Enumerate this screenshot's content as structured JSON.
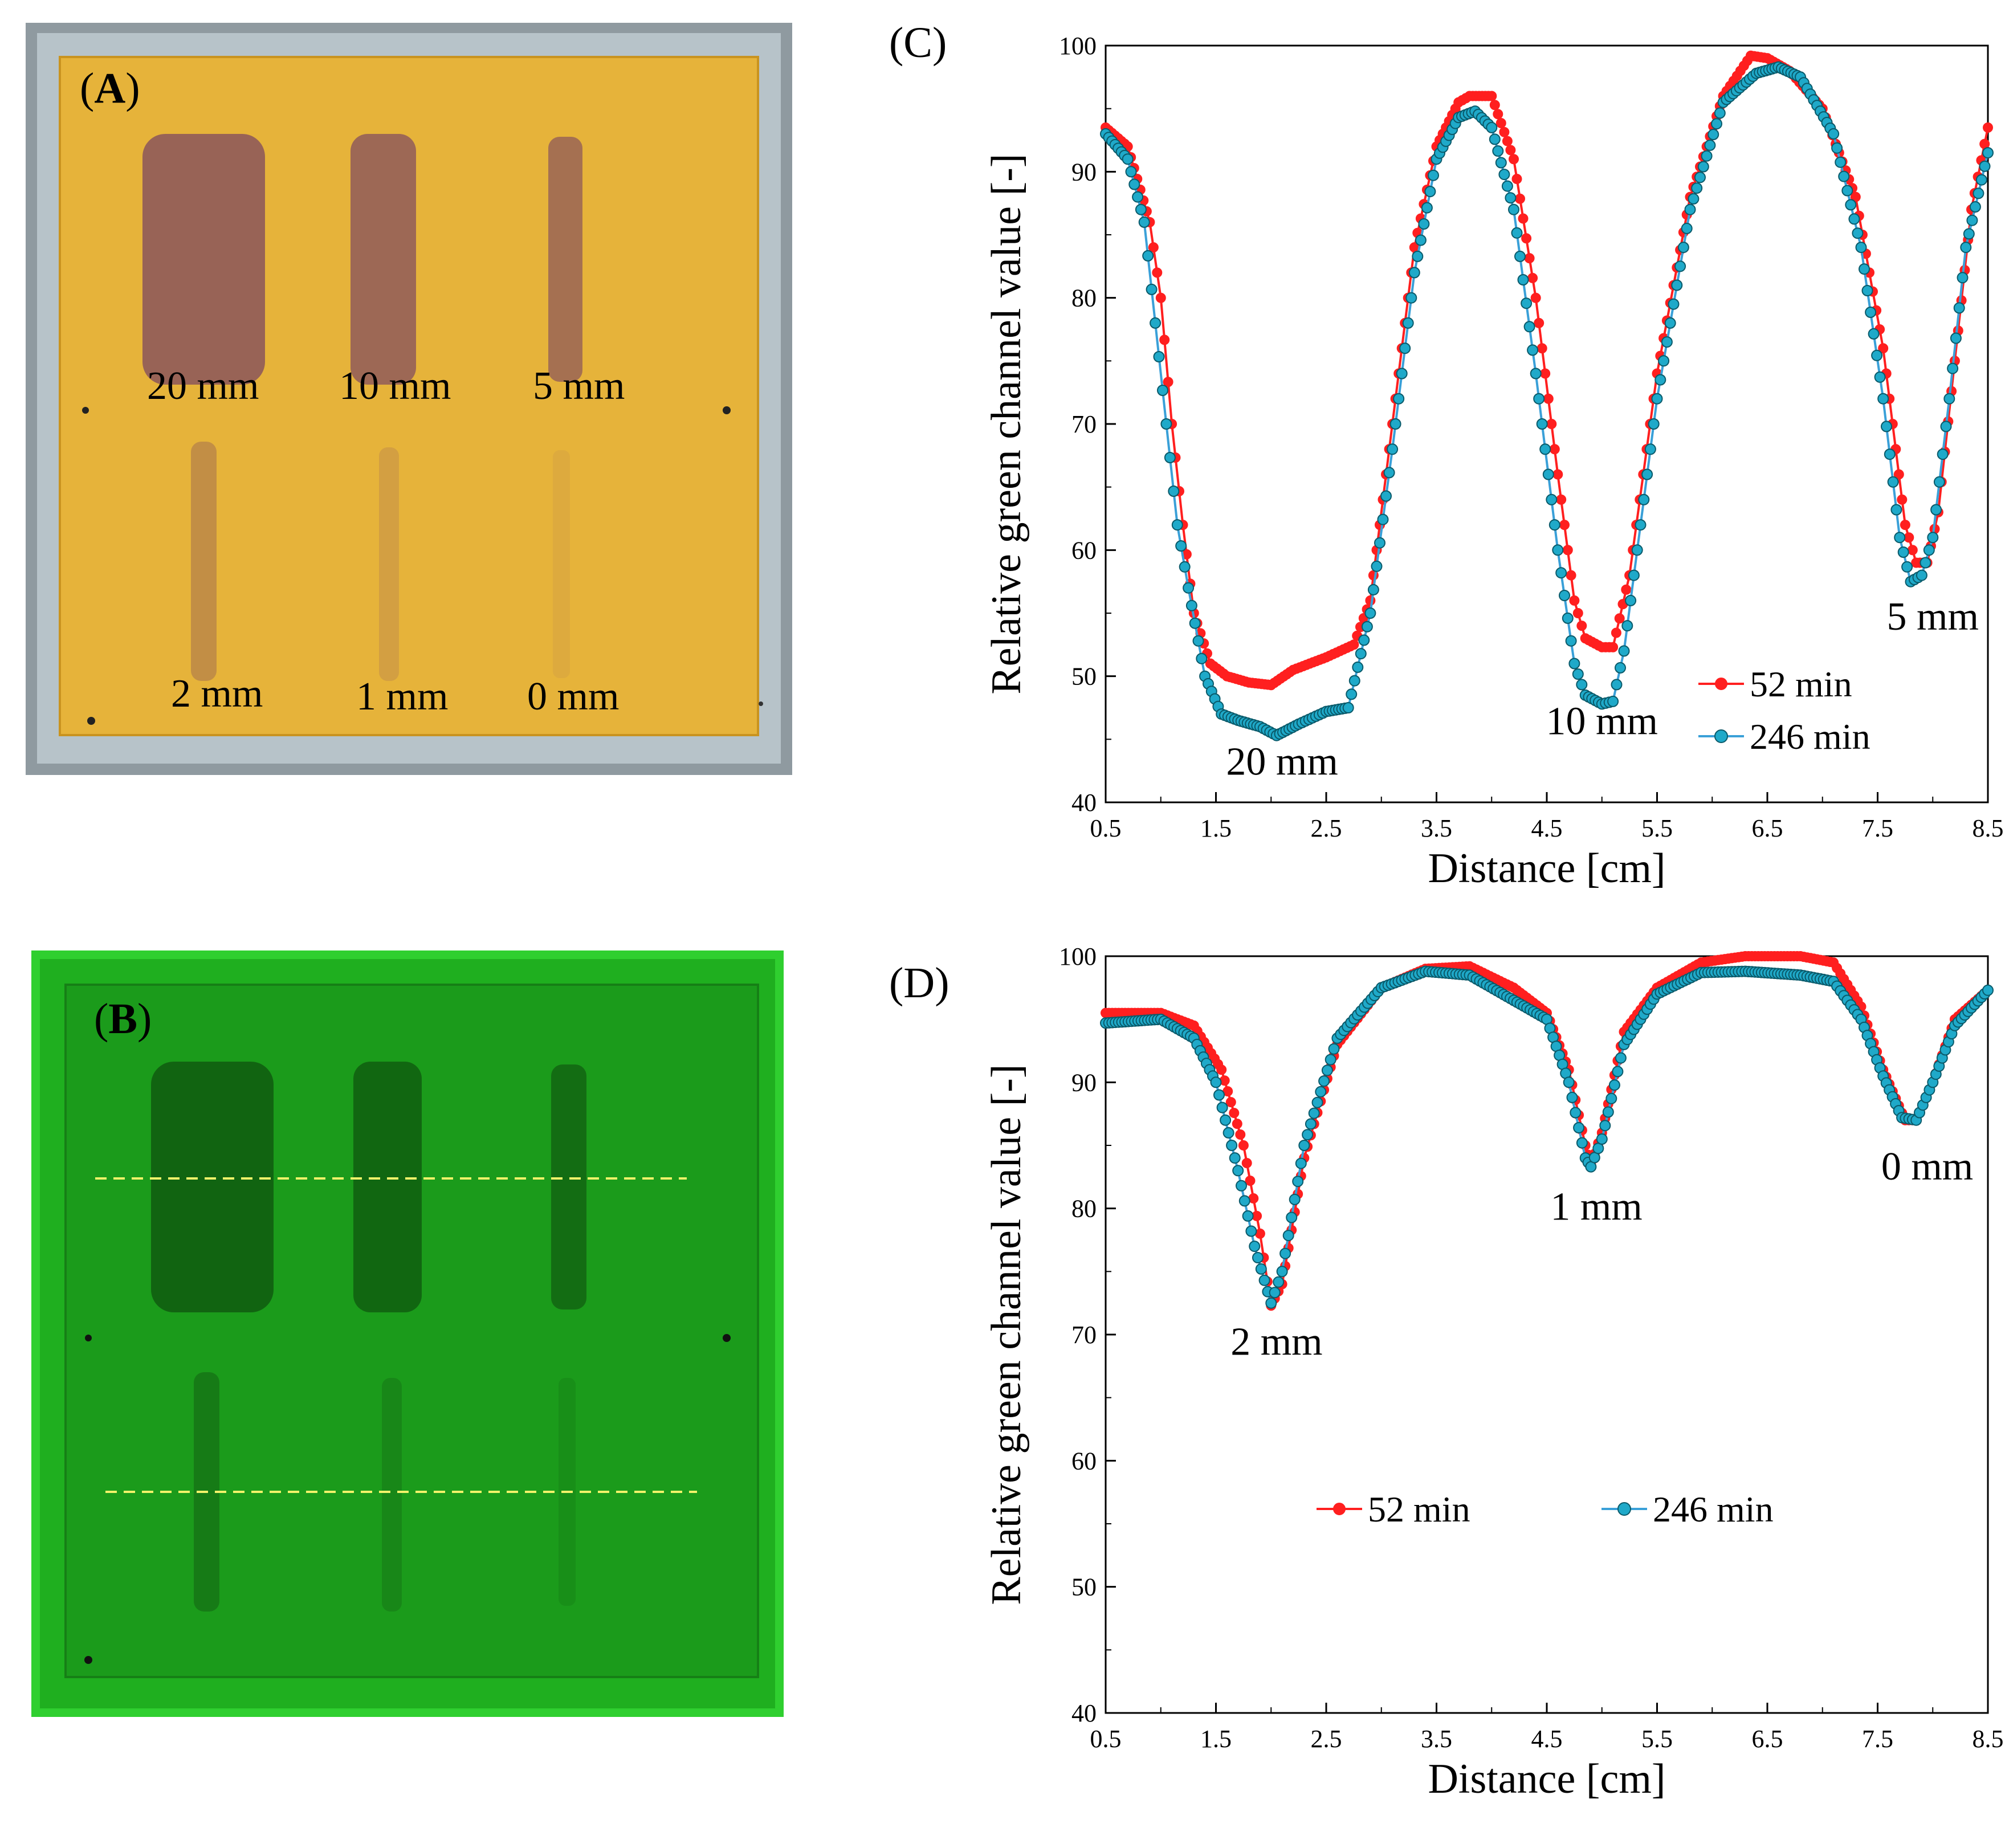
{
  "panels": {
    "A": {
      "label_open": "(",
      "label_letter": "A",
      "label_close": ")",
      "grid_labels": [
        "20 mm",
        "10 mm",
        "5 mm",
        "2 mm",
        "1 mm",
        "0 mm"
      ]
    },
    "B": {
      "label_open": "(",
      "label_letter": "B",
      "label_close": ")"
    }
  },
  "colors": {
    "series_52": "#ff1f1f",
    "series_246": "#1fa9c9",
    "series_246_line": "#3aa0d8",
    "photoA_bg": "#e6b23a",
    "photoB_bg": "#1a9a1a",
    "dashed_line": "#f2f26a"
  },
  "chart_data": [
    {
      "id": "C",
      "panel_label": "(C)",
      "type": "line",
      "xlabel": "Distance [cm]",
      "ylabel": "Relative  green  channel  value  [-]",
      "xlim": [
        0.5,
        8.5
      ],
      "ylim": [
        40,
        100
      ],
      "xticks": [
        "0.5",
        "1.5",
        "2.5",
        "3.5",
        "4.5",
        "5.5",
        "6.5",
        "7.5",
        "8.5"
      ],
      "yticks": [
        "40",
        "50",
        "60",
        "70",
        "80",
        "90",
        "100"
      ],
      "legend": [
        "52 min",
        "246 min"
      ],
      "annotations": [
        {
          "text": "20 mm",
          "x": 2.1,
          "y": 42.2
        },
        {
          "text": "10 mm",
          "x": 5.0,
          "y": 45.4
        },
        {
          "text": "5 mm",
          "x": 8.0,
          "y": 53.7
        }
      ],
      "series": [
        {
          "name": "52 min",
          "points": [
            [
              0.5,
              93.5
            ],
            [
              0.7,
              92
            ],
            [
              0.9,
              86
            ],
            [
              1.0,
              80
            ],
            [
              1.1,
              70
            ],
            [
              1.2,
              62
            ],
            [
              1.3,
              55
            ],
            [
              1.45,
              51
            ],
            [
              1.6,
              50
            ],
            [
              1.8,
              49.5
            ],
            [
              2.0,
              49.3
            ],
            [
              2.2,
              50.5
            ],
            [
              2.5,
              51.5
            ],
            [
              2.75,
              52.5
            ],
            [
              2.9,
              56
            ],
            [
              3.1,
              70
            ],
            [
              3.3,
              84
            ],
            [
              3.5,
              92
            ],
            [
              3.7,
              95.5
            ],
            [
              3.8,
              96
            ],
            [
              4.0,
              96
            ],
            [
              4.2,
              91
            ],
            [
              4.4,
              80
            ],
            [
              4.6,
              66
            ],
            [
              4.75,
              56
            ],
            [
              4.85,
              53
            ],
            [
              5.0,
              52.3
            ],
            [
              5.1,
              52.3
            ],
            [
              5.25,
              58
            ],
            [
              5.5,
              74
            ],
            [
              5.8,
              88
            ],
            [
              6.1,
              96
            ],
            [
              6.35,
              99.2
            ],
            [
              6.5,
              99
            ],
            [
              6.7,
              98
            ],
            [
              7.0,
              95
            ],
            [
              7.3,
              88
            ],
            [
              7.55,
              76
            ],
            [
              7.75,
              62
            ],
            [
              7.85,
              59
            ],
            [
              7.95,
              59
            ],
            [
              8.05,
              63
            ],
            [
              8.2,
              75
            ],
            [
              8.35,
              87
            ],
            [
              8.5,
              93.5
            ]
          ]
        },
        {
          "name": "246 min",
          "points": [
            [
              0.5,
              93
            ],
            [
              0.7,
              91
            ],
            [
              0.85,
              86
            ],
            [
              0.95,
              78
            ],
            [
              1.05,
              70
            ],
            [
              1.15,
              62
            ],
            [
              1.25,
              57
            ],
            [
              1.4,
              50
            ],
            [
              1.55,
              47
            ],
            [
              1.7,
              46.5
            ],
            [
              1.9,
              46
            ],
            [
              2.05,
              45.3
            ],
            [
              2.25,
              46.2
            ],
            [
              2.5,
              47.2
            ],
            [
              2.7,
              47.5
            ],
            [
              2.9,
              55
            ],
            [
              3.1,
              68
            ],
            [
              3.3,
              82
            ],
            [
              3.5,
              91
            ],
            [
              3.7,
              94.3
            ],
            [
              3.85,
              94.8
            ],
            [
              4.0,
              93.5
            ],
            [
              4.2,
              87
            ],
            [
              4.4,
              74
            ],
            [
              4.6,
              60
            ],
            [
              4.75,
              51
            ],
            [
              4.85,
              48.5
            ],
            [
              5.0,
              47.8
            ],
            [
              5.1,
              48
            ],
            [
              5.2,
              52
            ],
            [
              5.5,
              72
            ],
            [
              5.8,
              87
            ],
            [
              6.1,
              95.5
            ],
            [
              6.4,
              97.8
            ],
            [
              6.6,
              98.3
            ],
            [
              6.8,
              97.5
            ],
            [
              7.1,
              93
            ],
            [
              7.35,
              84
            ],
            [
              7.55,
              72
            ],
            [
              7.7,
              61
            ],
            [
              7.8,
              57.5
            ],
            [
              7.9,
              58
            ],
            [
              8.0,
              61
            ],
            [
              8.15,
              72
            ],
            [
              8.3,
              84
            ],
            [
              8.5,
              91.5
            ]
          ]
        }
      ]
    },
    {
      "id": "D",
      "panel_label": "(D)",
      "type": "line",
      "xlabel": "Distance [cm]",
      "ylabel": "Relative  green  channel  value  [-]",
      "xlim": [
        0.5,
        8.5
      ],
      "ylim": [
        40,
        100
      ],
      "xticks": [
        "0.5",
        "1.5",
        "2.5",
        "3.5",
        "4.5",
        "5.5",
        "6.5",
        "7.5",
        "8.5"
      ],
      "yticks": [
        "40",
        "50",
        "60",
        "70",
        "80",
        "90",
        "100"
      ],
      "legend": [
        "52 min",
        "246 min"
      ],
      "annotations": [
        {
          "text": "2 mm",
          "x": 2.05,
          "y": 68.4
        },
        {
          "text": "1 mm",
          "x": 4.95,
          "y": 79.1
        },
        {
          "text": "0 mm",
          "x": 7.95,
          "y": 82.3
        }
      ],
      "series": [
        {
          "name": "52 min",
          "points": [
            [
              0.5,
              95.5
            ],
            [
              1.0,
              95.5
            ],
            [
              1.3,
              94.5
            ],
            [
              1.55,
              91
            ],
            [
              1.75,
              85
            ],
            [
              1.9,
              78
            ],
            [
              2.0,
              72.3
            ],
            [
              2.1,
              74
            ],
            [
              2.3,
              84
            ],
            [
              2.6,
              93
            ],
            [
              3.0,
              97.5
            ],
            [
              3.4,
              99
            ],
            [
              3.8,
              99.2
            ],
            [
              4.2,
              97.5
            ],
            [
              4.5,
              95.5
            ],
            [
              4.7,
              91
            ],
            [
              4.85,
              85
            ],
            [
              4.9,
              83.5
            ],
            [
              5.0,
              86
            ],
            [
              5.2,
              94
            ],
            [
              5.5,
              97.5
            ],
            [
              5.9,
              99.5
            ],
            [
              6.3,
              100
            ],
            [
              6.8,
              100
            ],
            [
              7.1,
              99.5
            ],
            [
              7.35,
              96
            ],
            [
              7.55,
              91
            ],
            [
              7.75,
              87
            ],
            [
              7.85,
              87
            ],
            [
              8.0,
              90
            ],
            [
              8.2,
              95
            ],
            [
              8.5,
              97.3
            ]
          ]
        },
        {
          "name": "246 min",
          "points": [
            [
              0.5,
              94.7
            ],
            [
              1.0,
              95
            ],
            [
              1.3,
              93.5
            ],
            [
              1.5,
              90
            ],
            [
              1.7,
              83
            ],
            [
              1.85,
              77
            ],
            [
              2.0,
              72.5
            ],
            [
              2.1,
              75
            ],
            [
              2.3,
              85
            ],
            [
              2.6,
              93.5
            ],
            [
              3.0,
              97.5
            ],
            [
              3.4,
              98.8
            ],
            [
              3.8,
              98.5
            ],
            [
              4.2,
              96.5
            ],
            [
              4.5,
              95
            ],
            [
              4.7,
              90
            ],
            [
              4.85,
              84
            ],
            [
              4.9,
              83.3
            ],
            [
              5.0,
              85.5
            ],
            [
              5.2,
              93
            ],
            [
              5.5,
              97
            ],
            [
              5.9,
              98.7
            ],
            [
              6.3,
              98.8
            ],
            [
              6.8,
              98.5
            ],
            [
              7.1,
              98
            ],
            [
              7.35,
              95
            ],
            [
              7.55,
              90.5
            ],
            [
              7.72,
              87.2
            ],
            [
              7.85,
              87
            ],
            [
              8.0,
              90
            ],
            [
              8.2,
              94.5
            ],
            [
              8.5,
              97.3
            ]
          ]
        }
      ]
    }
  ]
}
